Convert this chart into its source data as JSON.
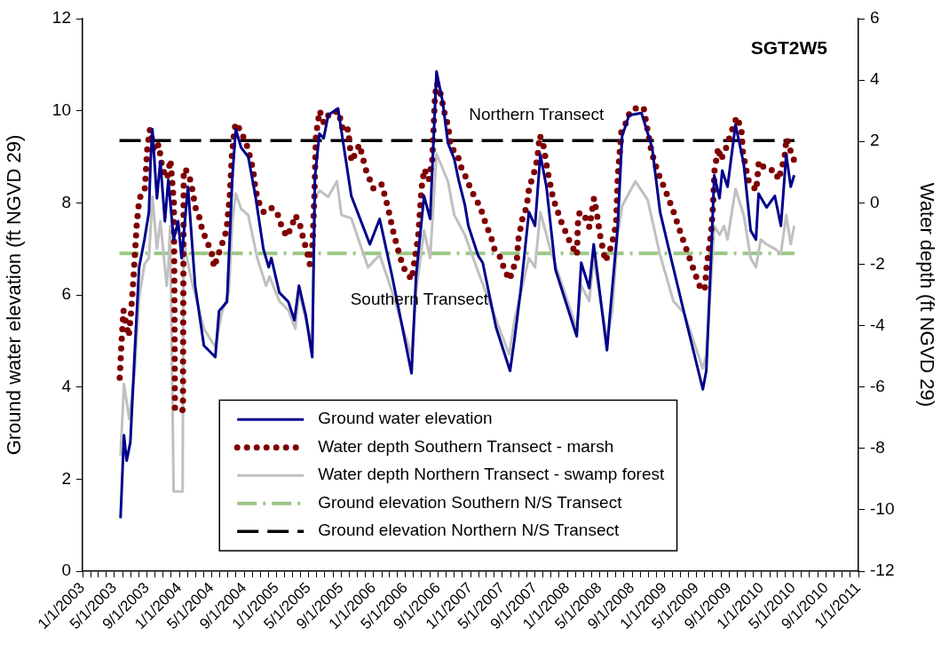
{
  "chart_data": {
    "type": "line",
    "ylabel": "Ground water elevation (ft NGVD 29)",
    "y2label": "Water depth (ft NGVD 29)",
    "annotations": [
      "SGT2W5",
      "Northern Transect",
      "Southern Transect"
    ],
    "legend": "bottom",
    "marker": "none",
    "xlim": [
      "2003-01-01",
      "2011-01-01"
    ],
    "xticks": [
      {
        "value": "2003-01-01",
        "label": "1/1/2003"
      },
      {
        "value": "2003-02-01",
        "label": null
      },
      {
        "value": "2003-03-01",
        "label": null
      },
      {
        "value": "2003-04-01",
        "label": null
      },
      {
        "value": "2003-05-01",
        "label": "5/1/2003"
      },
      {
        "value": "2003-06-01",
        "label": null
      },
      {
        "value": "2003-07-01",
        "label": null
      },
      {
        "value": "2003-08-01",
        "label": null
      },
      {
        "value": "2003-09-01",
        "label": "9/1/2003"
      },
      {
        "value": "2003-10-01",
        "label": null
      },
      {
        "value": "2003-11-01",
        "label": null
      },
      {
        "value": "2003-12-01",
        "label": null
      },
      {
        "value": "2004-01-01",
        "label": "1/1/2004"
      },
      {
        "value": "2004-02-01",
        "label": null
      },
      {
        "value": "2004-03-01",
        "label": null
      },
      {
        "value": "2004-04-01",
        "label": null
      },
      {
        "value": "2004-05-01",
        "label": "5/1/2004"
      },
      {
        "value": "2004-06-01",
        "label": null
      },
      {
        "value": "2004-07-01",
        "label": null
      },
      {
        "value": "2004-08-01",
        "label": null
      },
      {
        "value": "2004-09-01",
        "label": "9/1/2004"
      },
      {
        "value": "2004-10-01",
        "label": null
      },
      {
        "value": "2004-11-01",
        "label": null
      },
      {
        "value": "2004-12-01",
        "label": null
      },
      {
        "value": "2005-01-01",
        "label": "1/1/2005"
      },
      {
        "value": "2005-02-01",
        "label": null
      },
      {
        "value": "2005-03-01",
        "label": null
      },
      {
        "value": "2005-04-01",
        "label": null
      },
      {
        "value": "2005-05-01",
        "label": "5/1/2005"
      },
      {
        "value": "2005-06-01",
        "label": null
      },
      {
        "value": "2005-07-01",
        "label": null
      },
      {
        "value": "2005-08-01",
        "label": null
      },
      {
        "value": "2005-09-01",
        "label": "9/1/2005"
      },
      {
        "value": "2005-10-01",
        "label": null
      },
      {
        "value": "2005-11-01",
        "label": null
      },
      {
        "value": "2005-12-01",
        "label": null
      },
      {
        "value": "2006-01-01",
        "label": "1/1/2006"
      },
      {
        "value": "2006-02-01",
        "label": null
      },
      {
        "value": "2006-03-01",
        "label": null
      },
      {
        "value": "2006-04-01",
        "label": null
      },
      {
        "value": "2006-05-01",
        "label": "5/1/2006"
      },
      {
        "value": "2006-06-01",
        "label": null
      },
      {
        "value": "2006-07-01",
        "label": null
      },
      {
        "value": "2006-08-01",
        "label": null
      },
      {
        "value": "2006-09-01",
        "label": "9/1/2006"
      },
      {
        "value": "2006-10-01",
        "label": null
      },
      {
        "value": "2006-11-01",
        "label": null
      },
      {
        "value": "2006-12-01",
        "label": null
      },
      {
        "value": "2007-01-01",
        "label": "1/1/2007"
      },
      {
        "value": "2007-02-01",
        "label": null
      },
      {
        "value": "2007-03-01",
        "label": null
      },
      {
        "value": "2007-04-01",
        "label": null
      },
      {
        "value": "2007-05-01",
        "label": "5/1/2007"
      },
      {
        "value": "2007-06-01",
        "label": null
      },
      {
        "value": "2007-07-01",
        "label": null
      },
      {
        "value": "2007-08-01",
        "label": null
      },
      {
        "value": "2007-09-01",
        "label": "9/1/2007"
      },
      {
        "value": "2007-10-01",
        "label": null
      },
      {
        "value": "2007-11-01",
        "label": null
      },
      {
        "value": "2007-12-01",
        "label": null
      },
      {
        "value": "2008-01-01",
        "label": "1/1/2008"
      },
      {
        "value": "2008-02-01",
        "label": null
      },
      {
        "value": "2008-03-01",
        "label": null
      },
      {
        "value": "2008-04-01",
        "label": null
      },
      {
        "value": "2008-05-01",
        "label": "5/1/2008"
      },
      {
        "value": "2008-06-01",
        "label": null
      },
      {
        "value": "2008-07-01",
        "label": null
      },
      {
        "value": "2008-08-01",
        "label": null
      },
      {
        "value": "2008-09-01",
        "label": "9/1/2008"
      },
      {
        "value": "2008-10-01",
        "label": null
      },
      {
        "value": "2008-11-01",
        "label": null
      },
      {
        "value": "2008-12-01",
        "label": null
      },
      {
        "value": "2009-01-01",
        "label": "1/1/2009"
      },
      {
        "value": "2009-02-01",
        "label": null
      },
      {
        "value": "2009-03-01",
        "label": null
      },
      {
        "value": "2009-04-01",
        "label": null
      },
      {
        "value": "2009-05-01",
        "label": "5/1/2009"
      },
      {
        "value": "2009-06-01",
        "label": null
      },
      {
        "value": "2009-07-01",
        "label": null
      },
      {
        "value": "2009-08-01",
        "label": null
      },
      {
        "value": "2009-09-01",
        "label": "9/1/2009"
      },
      {
        "value": "2009-10-01",
        "label": null
      },
      {
        "value": "2009-11-01",
        "label": null
      },
      {
        "value": "2009-12-01",
        "label": null
      },
      {
        "value": "2010-01-01",
        "label": "1/1/2010"
      },
      {
        "value": "2010-02-01",
        "label": null
      },
      {
        "value": "2010-03-01",
        "label": null
      },
      {
        "value": "2010-04-01",
        "label": null
      },
      {
        "value": "2010-05-01",
        "label": "5/1/2010"
      },
      {
        "value": "2010-06-01",
        "label": null
      },
      {
        "value": "2010-07-01",
        "label": null
      },
      {
        "value": "2010-08-01",
        "label": null
      },
      {
        "value": "2010-09-01",
        "label": "9/1/2010"
      },
      {
        "value": "2010-10-01",
        "label": null
      },
      {
        "value": "2010-11-01",
        "label": null
      },
      {
        "value": "2010-12-01",
        "label": null
      },
      {
        "value": "2011-01-01",
        "label": "1/1/2011"
      }
    ],
    "ylim": [
      0,
      12
    ],
    "yticks": [
      0,
      2,
      4,
      6,
      8,
      10,
      12
    ],
    "y2lim": [
      -12,
      6
    ],
    "y2ticks": [
      -12,
      -10,
      -8,
      -6,
      -4,
      -2,
      0,
      2,
      4,
      6
    ],
    "series": [
      {
        "name": "Ground water elevation",
        "color": "#00008b",
        "line_style": "solid",
        "x": [
          "2003-05-24",
          "2003-06-06",
          "2003-06-16",
          "2003-06-30",
          "2003-07-16",
          "2003-08-02",
          "2003-08-22",
          "2003-09-08",
          "2003-09-14",
          "2003-09-21",
          "2003-10-08",
          "2003-10-21",
          "2003-11-07",
          "2003-11-20",
          "2003-12-10",
          "2003-12-27",
          "2004-01-09",
          "2004-02-02",
          "2004-02-29",
          "2004-04-02",
          "2004-05-15",
          "2004-05-29",
          "2004-06-28",
          "2004-07-18",
          "2004-07-31",
          "2004-08-20",
          "2004-09-16",
          "2004-10-13",
          "2004-11-12",
          "2004-12-02",
          "2004-12-12",
          "2005-01-11",
          "2005-02-14",
          "2005-03-09",
          "2005-03-26",
          "2005-04-21",
          "2005-05-15",
          "2005-05-25",
          "2005-06-11",
          "2005-06-27",
          "2005-07-14",
          "2005-08-20",
          "2005-10-09",
          "2005-12-18",
          "2006-01-24",
          "2006-03-12",
          "2006-05-24",
          "2006-06-10",
          "2006-07-10",
          "2006-08-02",
          "2006-08-26",
          "2006-09-18",
          "2006-10-08",
          "2006-11-01",
          "2006-11-17",
          "2006-12-11",
          "2006-12-24",
          "2007-01-30",
          "2007-02-16",
          "2007-04-07",
          "2007-05-30",
          "2007-06-16",
          "2007-07-09",
          "2007-08-09",
          "2007-09-01",
          "2007-09-21",
          "2007-10-14",
          "2007-11-17",
          "2008-02-05",
          "2008-02-22",
          "2008-03-23",
          "2008-04-09",
          "2008-05-29",
          "2008-06-08",
          "2008-07-08",
          "2008-07-25",
          "2008-08-20",
          "2008-10-06",
          "2008-11-15",
          "2008-12-15",
          "2009-01-21",
          "2009-03-16",
          "2009-05-25",
          "2009-06-07",
          "2009-06-27",
          "2009-07-07",
          "2009-07-27",
          "2009-08-06",
          "2009-08-26",
          "2009-09-25",
          "2009-10-26",
          "2009-11-21",
          "2009-12-11",
          "2009-12-21",
          "2010-01-20",
          "2010-02-20",
          "2010-03-15",
          "2010-04-04",
          "2010-04-21",
          "2010-05-04"
        ],
        "values": [
          1.15,
          2.95,
          2.4,
          2.8,
          4.7,
          6.6,
          7.2,
          7.8,
          8.9,
          9.6,
          8.1,
          8.9,
          7.6,
          8.5,
          7.2,
          7.6,
          6.8,
          8.35,
          6.2,
          4.9,
          4.65,
          5.65,
          5.85,
          8.55,
          9.6,
          9.2,
          9.0,
          8.15,
          7.0,
          6.6,
          6.8,
          6.05,
          5.85,
          5.45,
          6.2,
          5.55,
          4.65,
          8.55,
          9.5,
          9.4,
          9.9,
          10.05,
          8.15,
          7.1,
          7.65,
          6.4,
          4.3,
          6.4,
          8.15,
          7.65,
          10.85,
          10.2,
          9.3,
          8.95,
          8.5,
          7.95,
          7.5,
          6.85,
          6.7,
          5.3,
          4.35,
          5.05,
          6.1,
          7.8,
          7.5,
          9.05,
          8.35,
          6.55,
          5.1,
          6.7,
          6.15,
          7.1,
          4.8,
          5.5,
          7.45,
          9.45,
          9.9,
          9.95,
          9.2,
          7.8,
          6.9,
          5.6,
          3.95,
          4.35,
          7.1,
          8.6,
          8.1,
          8.7,
          8.35,
          9.7,
          8.85,
          7.4,
          7.2,
          8.2,
          7.9,
          8.15,
          7.5,
          9.05,
          8.35,
          8.6
        ]
      },
      {
        "name": "Water depth Southern Transect - marsh",
        "color": "#800000",
        "line_style": "dotted",
        "axis": "y2",
        "x": [
          "2003-05-21",
          "2003-05-28",
          "2003-06-04",
          "2003-06-24",
          "2003-07-01",
          "2003-07-11",
          "2003-07-24",
          "2003-08-03",
          "2003-08-23",
          "2003-09-02",
          "2003-09-12",
          "2003-09-29",
          "2003-10-15",
          "2003-10-29",
          "2003-11-15",
          "2003-11-28",
          "2003-12-11",
          "2003-12-15",
          "2004-01-14",
          "2004-01-17",
          "2004-01-27",
          "2004-02-13",
          "2004-03-01",
          "2004-03-17",
          "2004-03-27",
          "2004-04-16",
          "2004-05-03",
          "2004-05-10",
          "2004-05-26",
          "2004-06-09",
          "2004-06-26",
          "2004-07-09",
          "2004-07-16",
          "2004-07-26",
          "2004-08-01",
          "2004-08-21",
          "2004-09-14",
          "2004-10-04",
          "2004-10-14",
          "2004-10-27",
          "2004-11-13",
          "2004-12-10",
          "2005-01-02",
          "2005-01-19",
          "2005-02-08",
          "2005-02-25",
          "2005-03-13",
          "2005-04-02",
          "2005-04-12",
          "2005-04-26",
          "2005-05-06",
          "2005-05-16",
          "2005-05-23",
          "2005-05-29",
          "2005-06-12",
          "2005-06-28",
          "2005-07-18",
          "2005-08-04",
          "2005-08-21",
          "2005-09-10",
          "2005-09-27",
          "2005-10-10",
          "2005-11-09",
          "2005-12-02",
          "2006-01-01",
          "2006-02-01",
          "2006-02-24",
          "2006-03-19",
          "2006-04-12",
          "2006-04-29",
          "2006-05-25",
          "2006-06-04",
          "2006-06-18",
          "2006-07-01",
          "2006-07-11",
          "2006-07-28",
          "2006-08-10",
          "2006-08-20",
          "2006-08-27",
          "2006-09-09",
          "2006-09-26",
          "2006-10-09",
          "2006-10-19",
          "2006-11-12",
          "2006-11-25",
          "2006-12-19",
          "2007-01-04",
          "2007-02-07",
          "2007-03-02",
          "2007-03-19",
          "2007-04-01",
          "2007-04-25",
          "2007-05-11",
          "2007-05-31",
          "2007-06-04",
          "2007-06-24",
          "2007-06-30",
          "2007-07-17",
          "2007-07-31",
          "2007-08-10",
          "2007-08-26",
          "2007-09-09",
          "2007-09-19",
          "2007-10-02",
          "2007-10-19",
          "2007-11-08",
          "2007-12-08",
          "2008-01-14",
          "2008-02-06",
          "2008-02-09",
          "2008-02-16",
          "2008-03-07",
          "2008-03-24",
          "2008-04-10",
          "2008-04-20",
          "2008-05-03",
          "2008-05-23",
          "2008-06-15",
          "2008-07-02",
          "2008-07-09",
          "2008-07-22",
          "2008-08-08",
          "2008-08-25",
          "2008-09-20",
          "2008-10-14",
          "2008-10-24",
          "2008-11-13",
          "2008-12-06",
          "2009-01-02",
          "2009-02-04",
          "2009-03-07",
          "2009-04-09",
          "2009-05-12",
          "2009-06-01",
          "2009-06-08",
          "2009-06-25",
          "2009-07-02",
          "2009-07-08",
          "2009-07-22",
          "2009-08-01",
          "2009-08-21",
          "2009-09-13",
          "2009-09-30",
          "2009-10-17",
          "2009-10-23",
          "2009-11-12",
          "2009-12-12",
          "2009-12-22",
          "2010-01-15",
          "2010-02-21",
          "2010-03-06",
          "2010-03-29",
          "2010-04-05",
          "2010-04-22",
          "2010-05-05"
        ],
        "values": [
          -5.7,
          -4.5,
          -3.5,
          -4.35,
          -3.75,
          -2.55,
          -0.7,
          0.15,
          0.4,
          1.8,
          2.4,
          1.7,
          1.9,
          1.1,
          0.8,
          1.4,
          0,
          -6.75,
          -6.75,
          1.1,
          1.05,
          0.7,
          -0.15,
          -0.5,
          -0.9,
          -1.3,
          -1.7,
          -2.1,
          -1.7,
          -1.35,
          -0.9,
          0.3,
          1.5,
          2.4,
          2.6,
          2.3,
          1.8,
          1.1,
          0.4,
          0,
          -0.3,
          -0.15,
          -0.3,
          -0.75,
          -1.1,
          -0.8,
          -0.4,
          -0.8,
          -1.2,
          -1.6,
          -2.0,
          -1.35,
          0.2,
          2.2,
          3.0,
          2.6,
          2.9,
          2.9,
          3.0,
          2.3,
          2.4,
          1.35,
          1.9,
          1.1,
          0.45,
          0.6,
          -0.15,
          -1.05,
          -1.8,
          -2.2,
          -2.5,
          -1.9,
          -1.1,
          0.5,
          1.1,
          0.75,
          1.4,
          3.45,
          3.9,
          3.6,
          2.9,
          2.5,
          1.8,
          1.6,
          1.2,
          0.75,
          0.4,
          -0.15,
          -0.75,
          -1.1,
          -1.5,
          -1.8,
          -2.25,
          -2.5,
          -2.2,
          -1.95,
          -1.2,
          -0.45,
          -0.15,
          0.5,
          0.9,
          1.4,
          2.2,
          1.9,
          1.0,
          0.15,
          -0.6,
          -1.35,
          -1.7,
          -0.7,
          -0.3,
          -0.45,
          -0.8,
          0.15,
          -0.3,
          -1.05,
          -1.9,
          -1.4,
          -0.7,
          0.9,
          2.3,
          2.6,
          3.0,
          3.1,
          3.1,
          2.6,
          1.65,
          1.0,
          0.45,
          -0.3,
          -1.1,
          -1.9,
          -2.7,
          -2.85,
          -2.1,
          -1.0,
          -0.15,
          1.05,
          1.8,
          1.4,
          1.8,
          2.4,
          2.8,
          2.4,
          1.65,
          0.75,
          0.4,
          1.35,
          1.1,
          1.05,
          0.75,
          1.5,
          2.1,
          1.65,
          1.35
        ]
      },
      {
        "name": "Water depth Northern Transect - swamp forest",
        "color": "#c0c0c0",
        "line_style": "solid",
        "axis": "y2",
        "x": [
          "2003-05-24",
          "2003-06-06",
          "2003-06-26",
          "2003-07-16",
          "2003-08-02",
          "2003-08-22",
          "2003-09-08",
          "2003-09-21",
          "2003-10-08",
          "2003-10-21",
          "2003-11-14",
          "2003-11-20",
          "2003-11-27",
          "2003-12-10",
          "2004-01-13",
          "2004-01-16",
          "2004-02-12",
          "2004-04-02",
          "2004-05-15",
          "2004-06-08",
          "2004-07-05",
          "2004-07-18",
          "2004-07-31",
          "2004-08-20",
          "2004-09-16",
          "2004-10-20",
          "2004-11-22",
          "2004-12-05",
          "2005-01-11",
          "2005-02-14",
          "2005-03-12",
          "2005-03-26",
          "2005-04-21",
          "2005-05-15",
          "2005-05-25",
          "2005-06-11",
          "2005-07-14",
          "2005-08-16",
          "2005-09-02",
          "2005-10-09",
          "2005-12-11",
          "2006-01-24",
          "2006-03-12",
          "2006-05-24",
          "2006-06-10",
          "2006-07-10",
          "2006-08-02",
          "2006-08-26",
          "2006-10-08",
          "2006-11-01",
          "2006-12-11",
          "2007-01-30",
          "2007-04-07",
          "2007-05-27",
          "2007-06-16",
          "2007-08-09",
          "2007-09-01",
          "2007-09-21",
          "2007-10-28",
          "2008-02-05",
          "2008-02-22",
          "2008-03-23",
          "2008-04-09",
          "2008-05-29",
          "2008-06-18",
          "2008-07-08",
          "2008-07-25",
          "2008-09-13",
          "2008-10-29",
          "2008-12-15",
          "2009-02-03",
          "2009-03-16",
          "2009-05-25",
          "2009-06-07",
          "2009-06-27",
          "2009-07-07",
          "2009-07-27",
          "2009-08-13",
          "2009-08-26",
          "2009-09-25",
          "2009-10-26",
          "2009-11-21",
          "2009-12-11",
          "2009-12-29",
          "2010-01-20",
          "2010-02-20",
          "2010-03-15",
          "2010-04-04",
          "2010-04-21",
          "2010-05-04"
        ],
        "values": [
          -8.25,
          -5.9,
          -7.05,
          -5.55,
          -3.1,
          -2.0,
          -1.8,
          0.2,
          -1.5,
          -0.6,
          -2.7,
          -2.1,
          -0.75,
          -9.4,
          -9.4,
          -1.2,
          -2.4,
          -4.1,
          -4.7,
          -3.6,
          -2.9,
          -0.6,
          0.3,
          -0.2,
          -0.4,
          -1.8,
          -2.7,
          -2.4,
          -3.2,
          -3.5,
          -4.1,
          -2.9,
          -3.8,
          -4.65,
          0.15,
          0.4,
          0.2,
          0.7,
          -0.4,
          -0.5,
          -2.1,
          -1.7,
          -2.9,
          -5.0,
          -2.9,
          -0.9,
          -1.8,
          1.6,
          0.7,
          -0.4,
          -1.05,
          -2.25,
          -3.8,
          -4.95,
          -3.8,
          -1.8,
          -2.1,
          -0.3,
          -1.5,
          -4.1,
          -2.7,
          -3.2,
          -1.8,
          -4.5,
          -3.5,
          -1.05,
          -0.1,
          0.7,
          0.1,
          -1.7,
          -3.2,
          -3.6,
          -5.4,
          -4.95,
          -2.25,
          -0.75,
          -1.05,
          -0.75,
          -1.2,
          0.45,
          -0.4,
          -1.8,
          -2.1,
          -1.2,
          -1.35,
          -1.5,
          -1.65,
          -0.4,
          -1.35,
          -0.75
        ]
      },
      {
        "name": "Ground elevation Southern N/S Transect",
        "color": "#99c784",
        "line_style": "dashdot",
        "x": [
          "2003-05-20",
          "2010-05-05"
        ],
        "values": [
          6.9,
          6.9
        ]
      },
      {
        "name": "Ground elevation Northern N/S Transect",
        "color": "#000000",
        "line_style": "dashed",
        "x": [
          "2003-05-20",
          "2010-05-05"
        ],
        "values": [
          9.35,
          9.35
        ]
      }
    ]
  }
}
